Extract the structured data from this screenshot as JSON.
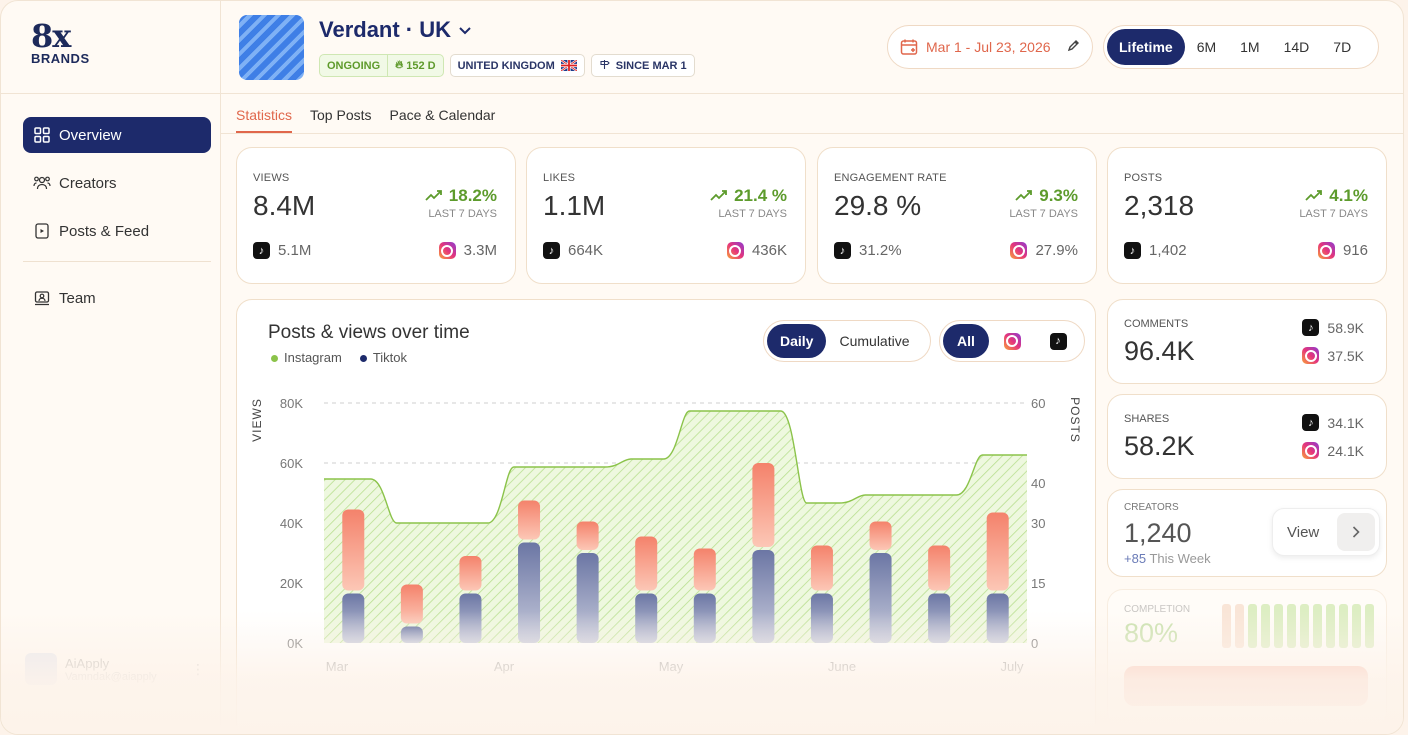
{
  "logo": {
    "big": "8x",
    "small": "BRANDS"
  },
  "sidebar": {
    "items": [
      {
        "label": "Overview",
        "icon": "grid-icon"
      },
      {
        "label": "Creators",
        "icon": "users-icon"
      },
      {
        "label": "Posts & Feed",
        "icon": "feed-icon"
      },
      {
        "label": "Team",
        "icon": "team-icon"
      }
    ],
    "user": {
      "name": "AiApply",
      "sub": "Vamndak@aiapply"
    }
  },
  "brand": {
    "name": "Verdant · UK",
    "status": "ONGOING",
    "days": "152 D",
    "country": "UNITED KINGDOM",
    "since": "SINCE MAR 1"
  },
  "date_range": "Mar 1 - Jul 23, 2026",
  "range_options": [
    "Lifetime",
    "6M",
    "1M",
    "14D",
    "7D"
  ],
  "range_active": "Lifetime",
  "tabs": [
    "Statistics",
    "Top Posts",
    "Pace & Calendar"
  ],
  "stats": [
    {
      "label": "VIEWS",
      "value": "8.4M",
      "delta": "18.2%",
      "period": "LAST 7 DAYS",
      "tiktok": "5.1M",
      "instagram": "3.3M"
    },
    {
      "label": "LIKES",
      "value": "1.1M",
      "delta": "21.4 %",
      "period": "LAST 7 DAYS",
      "tiktok": "664K",
      "instagram": "436K"
    },
    {
      "label": "ENGAGEMENT RATE",
      "value": "29.8 %",
      "delta": "9.3%",
      "period": "LAST 7 DAYS",
      "tiktok": "31.2%",
      "instagram": "27.9%"
    },
    {
      "label": "POSTS",
      "value": "2,318",
      "delta": "4.1%",
      "period": "LAST 7 DAYS",
      "tiktok": "1,402",
      "instagram": "916"
    }
  ],
  "comments": {
    "label": "COMMENTS",
    "value": "96.4K",
    "tiktok": "58.9K",
    "instagram": "37.5K"
  },
  "shares": {
    "label": "SHARES",
    "value": "58.2K",
    "tiktok": "34.1K",
    "instagram": "24.1K"
  },
  "creators": {
    "label": "CREATORS",
    "value": "1,240",
    "week_delta": "+85",
    "week_label": "This Week",
    "view_label": "View"
  },
  "completion": {
    "label": "COMPLETION",
    "value": "80%"
  },
  "chart": {
    "title": "Posts & views over time",
    "mode_options": [
      "Daily",
      "Cumulative"
    ],
    "mode_active": "Daily",
    "platform_active": "All"
  },
  "colors": {
    "instagram": "#8bc34a",
    "tiktok": "#1d2a6b",
    "accent": "#e0674c",
    "nav_active": "#1d2a6b"
  },
  "chart_data": {
    "type": "bar",
    "title": "Posts & views over time",
    "xlabel": "",
    "ylabel": "VIEWS",
    "y2label": "POSTS",
    "ylim": [
      0,
      80000
    ],
    "y2lim": [
      0,
      60
    ],
    "yticks": [
      "0K",
      "20K",
      "40K",
      "60K",
      "80K"
    ],
    "y2ticks": [
      "0",
      "15",
      "30",
      "40",
      "60"
    ],
    "xticks": [
      "Mar",
      "Apr",
      "May",
      "June",
      "July"
    ],
    "legend": [
      "Instagram",
      "Tiktok"
    ],
    "series": [
      {
        "name": "Tiktok",
        "values": [
          16500,
          5500,
          16500,
          33500,
          30000,
          16500,
          16500,
          31000,
          16500,
          30000,
          16500,
          16500
        ]
      },
      {
        "name": "Instagram",
        "values": [
          28000,
          14000,
          12500,
          14000,
          10500,
          19000,
          15000,
          29000,
          16000,
          10500,
          16000,
          27000
        ]
      },
      {
        "name": "Posts",
        "values": [
          41,
          30,
          30,
          44,
          44,
          46,
          58,
          58,
          35,
          37,
          37,
          47
        ]
      }
    ]
  }
}
